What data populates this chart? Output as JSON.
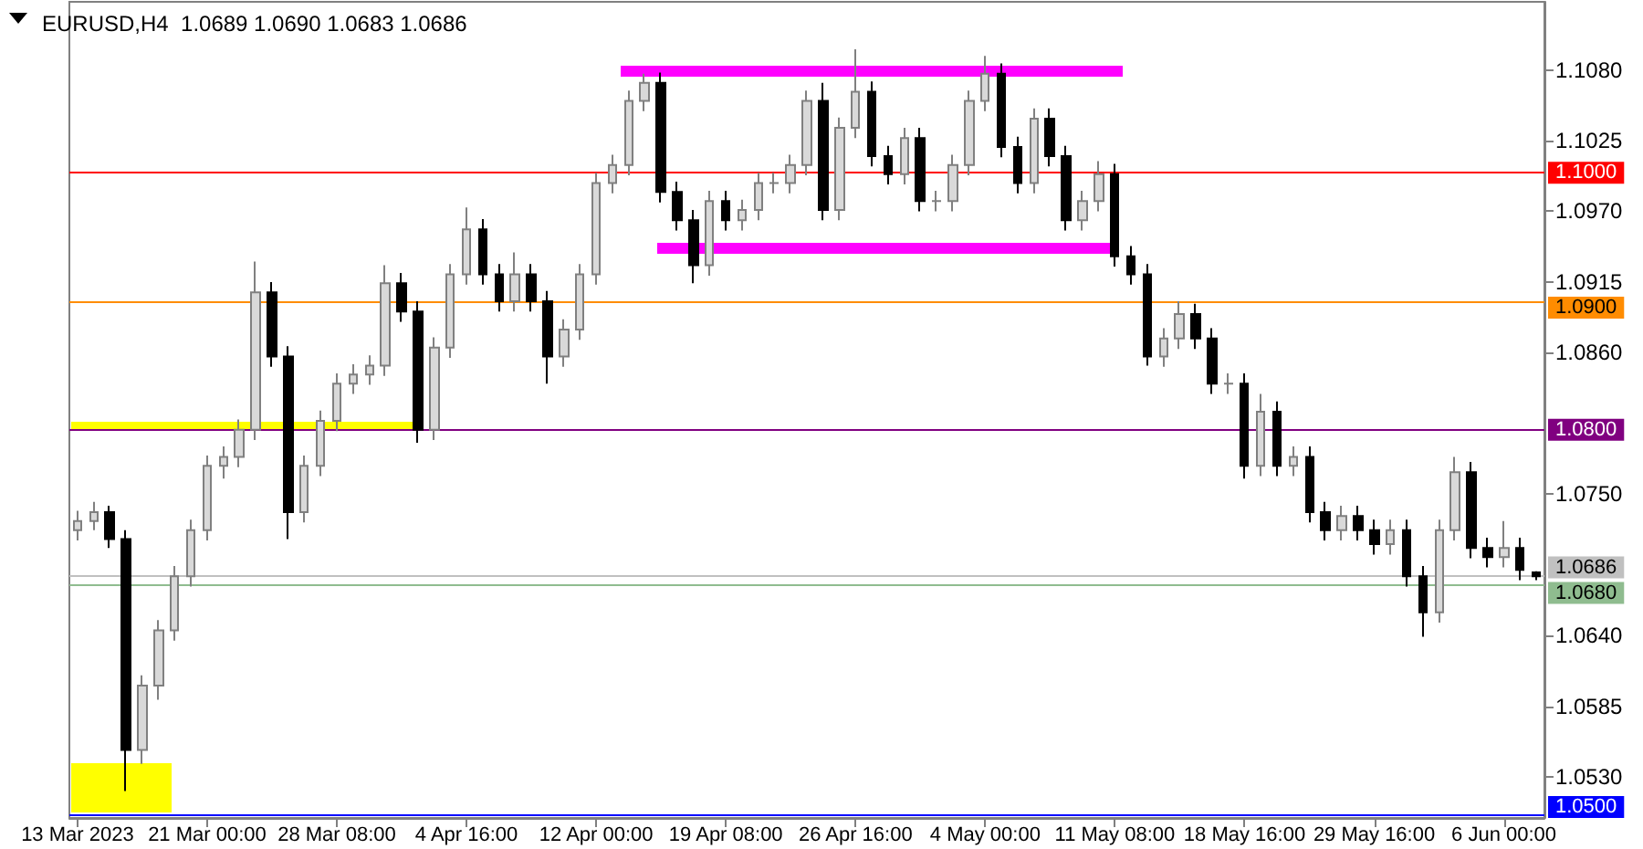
{
  "chart_data": {
    "type": "candlestick",
    "title": "EURUSD,H4  1.0689 1.0690 1.0683 1.0686",
    "categories": [
      "13 Mar 2023",
      null,
      null,
      null,
      null,
      null,
      null,
      null,
      "21 Mar 00:00",
      null,
      null,
      null,
      null,
      null,
      null,
      null,
      "28 Mar 08:00",
      null,
      null,
      null,
      null,
      null,
      null,
      null,
      "4 Apr 16:00",
      null,
      null,
      null,
      null,
      null,
      null,
      null,
      "12 Apr 00:00",
      null,
      null,
      null,
      null,
      null,
      null,
      null,
      "19 Apr 08:00",
      null,
      null,
      null,
      null,
      null,
      null,
      null,
      "26 Apr 16:00",
      null,
      null,
      null,
      null,
      null,
      null,
      null,
      "4 May 00:00",
      null,
      null,
      null,
      null,
      null,
      null,
      null,
      "11 May 08:00",
      null,
      null,
      null,
      null,
      null,
      null,
      null,
      "18 May 16:00",
      null,
      null,
      null,
      null,
      null,
      null,
      null,
      "29 May 16:00",
      null,
      null,
      null,
      null,
      null,
      null,
      null,
      "6 Jun 00:00",
      null,
      null
    ],
    "ohlc": [
      [
        1.0722,
        1.0737,
        1.0714,
        1.0729
      ],
      [
        1.0729,
        1.0744,
        1.0722,
        1.0736
      ],
      [
        1.0736,
        1.0741,
        1.0708,
        1.0715
      ],
      [
        1.0715,
        1.0722,
        1.0519,
        1.0551
      ],
      [
        1.0551,
        1.0609,
        1.054,
        1.0601
      ],
      [
        1.0601,
        1.0652,
        1.059,
        1.0644
      ],
      [
        1.0644,
        1.0694,
        1.0636,
        1.0686
      ],
      [
        1.0686,
        1.073,
        1.0678,
        1.0722
      ],
      [
        1.0722,
        1.078,
        1.0714,
        1.0772
      ],
      [
        1.0772,
        1.0787,
        1.0762,
        1.0779
      ],
      [
        1.0779,
        1.0808,
        1.0771,
        1.08
      ],
      [
        1.08,
        1.0931,
        1.0792,
        1.0907
      ],
      [
        1.0907,
        1.0915,
        1.0849,
        1.0857
      ],
      [
        1.0857,
        1.0865,
        1.0715,
        1.0736
      ],
      [
        1.0736,
        1.078,
        1.0728,
        1.0772
      ],
      [
        1.0772,
        1.0815,
        1.0764,
        1.0807
      ],
      [
        1.0807,
        1.0844,
        1.0799,
        1.0836
      ],
      [
        1.0836,
        1.0851,
        1.0828,
        1.0843
      ],
      [
        1.0843,
        1.0858,
        1.0835,
        1.085
      ],
      [
        1.085,
        1.0928,
        1.0842,
        1.0914
      ],
      [
        1.0914,
        1.0922,
        1.0884,
        1.0892
      ],
      [
        1.0892,
        1.09,
        1.079,
        1.08
      ],
      [
        1.08,
        1.0872,
        1.0792,
        1.0864
      ],
      [
        1.0864,
        1.0929,
        1.0856,
        1.0921
      ],
      [
        1.0921,
        1.0973,
        1.0913,
        1.0956
      ],
      [
        1.0956,
        1.0964,
        1.0913,
        1.0921
      ],
      [
        1.0921,
        1.0929,
        1.0892,
        1.09
      ],
      [
        1.09,
        1.0938,
        1.0892,
        1.0921
      ],
      [
        1.0921,
        1.0929,
        1.0892,
        1.09
      ],
      [
        1.09,
        1.0908,
        1.0836,
        1.0857
      ],
      [
        1.0857,
        1.0886,
        1.0849,
        1.0878
      ],
      [
        1.0878,
        1.0929,
        1.087,
        1.0921
      ],
      [
        1.0921,
        1.1,
        1.0913,
        1.0992
      ],
      [
        1.0992,
        1.1014,
        1.0984,
        1.1006
      ],
      [
        1.1006,
        1.1064,
        1.0998,
        1.1056
      ],
      [
        1.1056,
        1.1077,
        1.1048,
        1.107
      ],
      [
        1.107,
        1.1078,
        1.0977,
        1.0985
      ],
      [
        1.0985,
        1.0993,
        1.0955,
        1.0963
      ],
      [
        1.0963,
        1.0971,
        1.0914,
        1.0928
      ],
      [
        1.0928,
        1.0986,
        1.092,
        1.0978
      ],
      [
        1.0978,
        1.0986,
        1.0955,
        1.0963
      ],
      [
        1.0963,
        1.0979,
        1.0955,
        1.0971
      ],
      [
        1.0971,
        1.1,
        1.0963,
        1.0992
      ],
      [
        1.0992,
        1.1,
        1.0984,
        1.0992
      ],
      [
        1.0992,
        1.1014,
        1.0984,
        1.1006
      ],
      [
        1.1006,
        1.1064,
        1.0998,
        1.1056
      ],
      [
        1.1056,
        1.107,
        1.0963,
        1.0971
      ],
      [
        1.0971,
        1.1043,
        1.0963,
        1.1035
      ],
      [
        1.1035,
        1.1096,
        1.1027,
        1.1063
      ],
      [
        1.1063,
        1.1071,
        1.1005,
        1.1013
      ],
      [
        1.1013,
        1.1021,
        1.0991,
        1.0999
      ],
      [
        1.0999,
        1.1035,
        1.0991,
        1.1027
      ],
      [
        1.1027,
        1.1035,
        1.097,
        1.0978
      ],
      [
        1.0978,
        1.0986,
        1.097,
        1.0978
      ],
      [
        1.0978,
        1.1014,
        1.097,
        1.1006
      ],
      [
        1.1006,
        1.1064,
        1.0998,
        1.1056
      ],
      [
        1.1056,
        1.1091,
        1.1048,
        1.1077
      ],
      [
        1.1077,
        1.1085,
        1.1012,
        1.102
      ],
      [
        1.102,
        1.1028,
        1.0984,
        1.0992
      ],
      [
        1.0992,
        1.105,
        1.0984,
        1.1042
      ],
      [
        1.1042,
        1.105,
        1.1005,
        1.1013
      ],
      [
        1.1013,
        1.1021,
        1.0955,
        1.0963
      ],
      [
        1.0963,
        1.0986,
        1.0955,
        1.0978
      ],
      [
        1.0978,
        1.1009,
        1.097,
        1.0999
      ],
      [
        1.0999,
        1.1007,
        1.0927,
        1.0935
      ],
      [
        1.0935,
        1.0943,
        1.0913,
        1.0921
      ],
      [
        1.0921,
        1.0929,
        1.085,
        1.0857
      ],
      [
        1.0857,
        1.0879,
        1.0849,
        1.0871
      ],
      [
        1.0871,
        1.09,
        1.0863,
        1.089
      ],
      [
        1.089,
        1.0898,
        1.0863,
        1.0871
      ],
      [
        1.0871,
        1.0879,
        1.0828,
        1.0836
      ],
      [
        1.0836,
        1.0844,
        1.0828,
        1.0836
      ],
      [
        1.0836,
        1.0844,
        1.0762,
        1.0772
      ],
      [
        1.0772,
        1.0828,
        1.0764,
        1.0814
      ],
      [
        1.0814,
        1.0822,
        1.0764,
        1.0772
      ],
      [
        1.0772,
        1.0787,
        1.0764,
        1.0779
      ],
      [
        1.0779,
        1.0787,
        1.0728,
        1.0736
      ],
      [
        1.0736,
        1.0744,
        1.0714,
        1.0722
      ],
      [
        1.0722,
        1.0741,
        1.0714,
        1.0733
      ],
      [
        1.0733,
        1.0741,
        1.0714,
        1.0722
      ],
      [
        1.0722,
        1.073,
        1.0703,
        1.0711
      ],
      [
        1.0711,
        1.073,
        1.0703,
        1.0722
      ],
      [
        1.0722,
        1.073,
        1.0678,
        1.0686
      ],
      [
        1.0686,
        1.0694,
        1.0639,
        1.0658
      ],
      [
        1.0658,
        1.073,
        1.065,
        1.0722
      ],
      [
        1.0722,
        1.0779,
        1.0714,
        1.0767
      ],
      [
        1.0767,
        1.0775,
        1.07,
        1.0708
      ],
      [
        1.0708,
        1.0716,
        1.0693,
        1.0701
      ],
      [
        1.0701,
        1.0729,
        1.0693,
        1.0708
      ],
      [
        1.0708,
        1.0716,
        1.0683,
        1.0691
      ],
      [
        1.0689,
        1.069,
        1.0683,
        1.0686
      ]
    ],
    "ylim": [
      1.0498,
      1.1133
    ],
    "yticks": [
      {
        "value": 1.053,
        "label": "1.0530"
      },
      {
        "value": 1.0585,
        "label": "1.0585"
      },
      {
        "value": 1.064,
        "label": "1.0640"
      },
      {
        "value": 1.075,
        "label": "1.0750"
      },
      {
        "value": 1.086,
        "label": "1.0860"
      },
      {
        "value": 1.0915,
        "label": "1.0915"
      },
      {
        "value": 1.097,
        "label": "1.0970"
      },
      {
        "value": 1.1025,
        "label": "1.1025"
      },
      {
        "value": 1.108,
        "label": "1.1080"
      }
    ],
    "ref_lines": [
      {
        "axis": "y",
        "value": 1.1,
        "label": "1.1000",
        "color": "#ff0000"
      },
      {
        "axis": "y",
        "value": 1.09,
        "label": "1.0900",
        "color": "#ff8c00"
      },
      {
        "axis": "y",
        "value": 1.08,
        "label": "1.0800",
        "color": "#800080"
      },
      {
        "axis": "y",
        "value": 1.0686,
        "label": "1.0686",
        "color": "#c0c0c0"
      },
      {
        "axis": "y",
        "value": 1.068,
        "label": "1.0680",
        "color": "#8fbc8f"
      },
      {
        "axis": "y",
        "value": 1.05,
        "label": "1.0500",
        "color": "#0000ff"
      }
    ],
    "grid": false
  }
}
